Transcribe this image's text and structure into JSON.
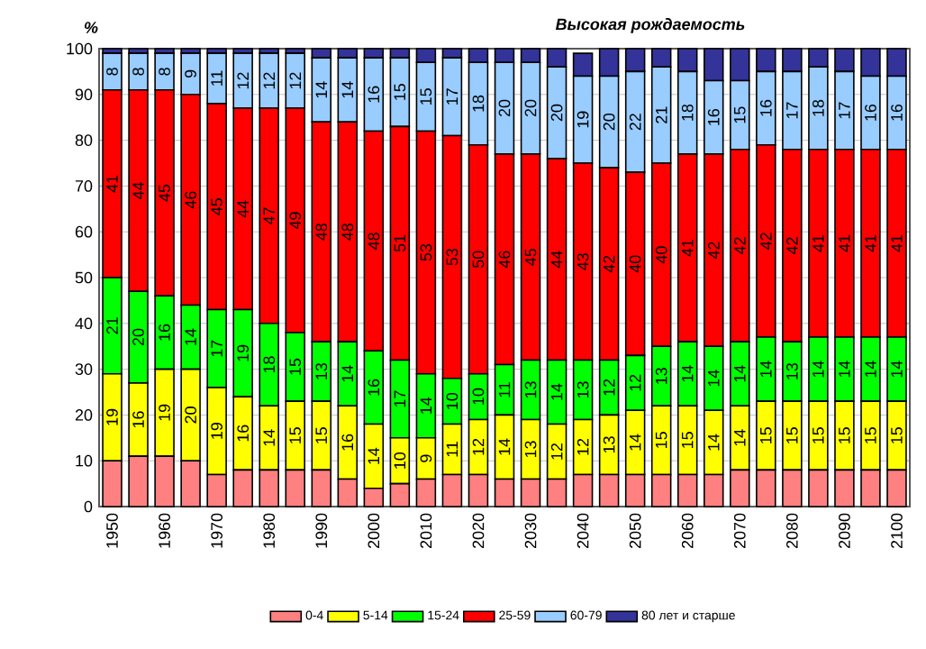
{
  "chart_data": {
    "type": "bar",
    "stacked": true,
    "title": "Высокая рождаемость",
    "ylabel": "%",
    "categories": [
      "1950",
      null,
      "1960",
      null,
      "1970",
      null,
      "1980",
      null,
      "1990",
      null,
      "2000",
      null,
      "2010",
      null,
      "2020",
      null,
      "2030",
      null,
      "2040",
      null,
      "2050",
      null,
      "2060",
      null,
      "2070",
      null,
      "2080",
      null,
      "2090",
      null,
      "2100"
    ],
    "ylim": [
      0,
      100
    ],
    "yticks": [
      0,
      10,
      20,
      30,
      40,
      50,
      60,
      70,
      80,
      90,
      100
    ],
    "grid": "y",
    "legend": "bottom",
    "series": [
      {
        "name": "0-4",
        "color": "#ff8080",
        "values": [
          10,
          11,
          11,
          10,
          7,
          8,
          8,
          8,
          8,
          6,
          4,
          5,
          6,
          7,
          7,
          6,
          6,
          6,
          7,
          7,
          7,
          7,
          7,
          7,
          8,
          8,
          8,
          8,
          8,
          8,
          8
        ]
      },
      {
        "name": "5-14",
        "color": "#ffff00",
        "values": [
          19,
          16,
          19,
          20,
          19,
          16,
          14,
          15,
          15,
          16,
          14,
          10,
          9,
          11,
          12,
          14,
          13,
          12,
          12,
          13,
          14,
          15,
          15,
          14,
          14,
          15,
          15,
          15,
          15,
          15,
          15
        ],
        "value_labels": [
          "19",
          "16",
          "19",
          "20",
          "19",
          "16",
          "14",
          "15",
          "15",
          "16",
          "14",
          "10",
          "9",
          "11",
          "12",
          "14",
          "13",
          "12",
          "12",
          "13",
          "14",
          "15",
          "15",
          "14",
          "14",
          "15",
          "15",
          "15",
          "15",
          "15",
          "15"
        ]
      },
      {
        "name": "15-24",
        "color": "#00ff00",
        "values": [
          21,
          20,
          16,
          14,
          17,
          19,
          18,
          15,
          13,
          14,
          16,
          17,
          14,
          10,
          10,
          11,
          13,
          14,
          13,
          12,
          12,
          13,
          14,
          14,
          14,
          14,
          13,
          14,
          14,
          14,
          14
        ],
        "value_labels": [
          "21",
          "20",
          "16",
          "14",
          "17",
          "19",
          "18",
          "15",
          "13",
          "14",
          "16",
          "17",
          "14",
          "10",
          "10",
          "11",
          "13",
          "14",
          "13",
          "12",
          "12",
          "13",
          "14",
          "14",
          "14",
          "14",
          "13",
          "14",
          "14",
          "14",
          "14"
        ]
      },
      {
        "name": "25-59",
        "color": "#ff0000",
        "values": [
          41,
          44,
          45,
          46,
          45,
          44,
          47,
          49,
          48,
          48,
          48,
          51,
          53,
          53,
          50,
          46,
          45,
          44,
          43,
          42,
          40,
          40,
          41,
          42,
          42,
          42,
          42,
          41,
          41,
          41,
          41
        ],
        "value_labels": [
          "41",
          "44",
          "45",
          "46",
          "45",
          "44",
          "47",
          "49",
          "48",
          "48",
          "48",
          "51",
          "53",
          "53",
          "50",
          "46",
          "45",
          "44",
          "43",
          "42",
          "40",
          "40",
          "41",
          "42",
          "42",
          "42",
          "42",
          "41",
          "41",
          "41",
          "41"
        ]
      },
      {
        "name": "60-79",
        "color": "#99ccff",
        "values": [
          8,
          8,
          8,
          9,
          11,
          12,
          12,
          12,
          14,
          14,
          16,
          15,
          15,
          17,
          18,
          20,
          20,
          20,
          19,
          20,
          22,
          21,
          18,
          16,
          15,
          16,
          17,
          18,
          17,
          16,
          16
        ],
        "value_labels": [
          "8",
          "8",
          "8",
          "9",
          "11",
          "12",
          "12",
          "12",
          "14",
          "14",
          "16",
          "15",
          "15",
          "17",
          "18",
          "20",
          "20",
          "20",
          "19",
          "20",
          "22",
          "21",
          "18",
          "16",
          "15",
          "16",
          "17",
          "18",
          "17",
          "16",
          "16"
        ]
      },
      {
        "name": "80 лет и старше",
        "color": "#333399",
        "values": [
          1,
          1,
          1,
          1,
          1,
          1,
          1,
          1,
          2,
          2,
          2,
          2,
          3,
          2,
          3,
          3,
          3,
          4,
          5,
          6,
          5,
          4,
          5,
          7,
          7,
          5,
          5,
          4,
          5,
          6,
          6
        ]
      }
    ]
  }
}
